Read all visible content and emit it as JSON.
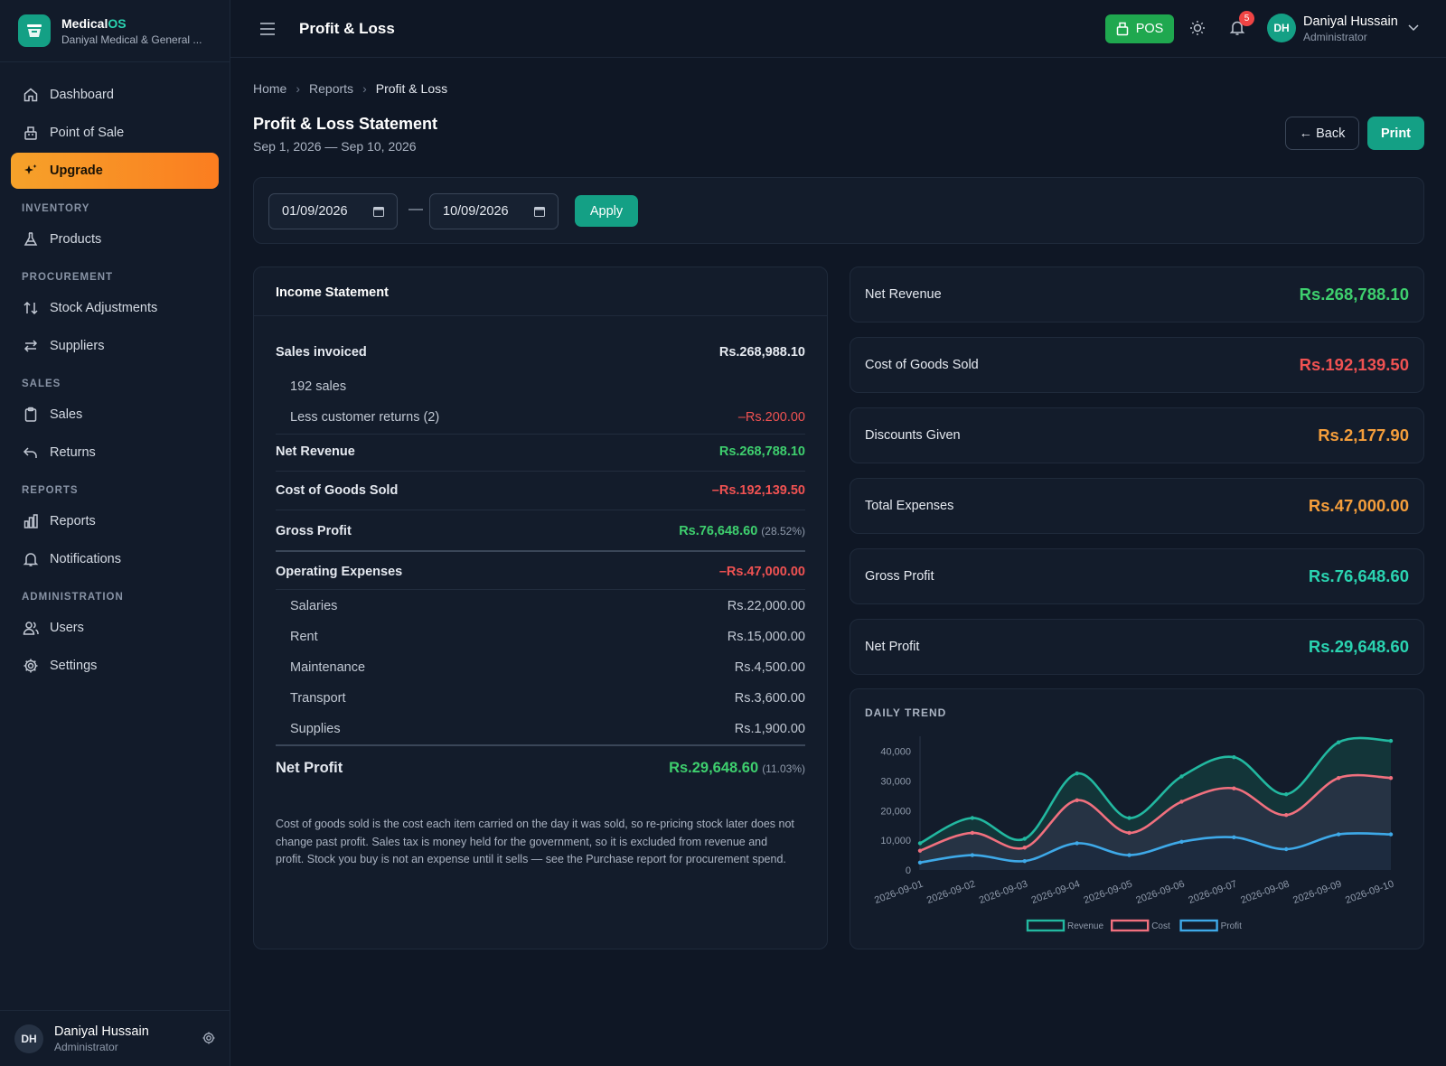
{
  "brand": {
    "name_main": "Medical",
    "name_accent": "OS",
    "subtitle": "Daniyal Medical & General ..."
  },
  "nav": {
    "dashboard": "Dashboard",
    "pos": "Point of Sale",
    "upgrade": "Upgrade",
    "sec_inventory": "INVENTORY",
    "products": "Products",
    "sec_procurement": "PROCUREMENT",
    "stock_adjustments": "Stock Adjustments",
    "suppliers": "Suppliers",
    "sec_sales": "SALES",
    "sales": "Sales",
    "returns": "Returns",
    "sec_reports": "REPORTS",
    "reports": "Reports",
    "notifications": "Notifications",
    "sec_administration": "ADMINISTRATION",
    "users": "Users",
    "settings": "Settings"
  },
  "user": {
    "initials": "DH",
    "name": "Daniyal Hussain",
    "role": "Administrator"
  },
  "topbar": {
    "title": "Profit & Loss",
    "pos_label": "POS",
    "notification_count": "5"
  },
  "breadcrumb": {
    "home": "Home",
    "reports": "Reports",
    "current": "Profit & Loss"
  },
  "header": {
    "title": "Profit & Loss Statement",
    "period": "Sep 1, 2026 — Sep 10, 2026",
    "back_label": "← Back",
    "print_label": "Print"
  },
  "filter": {
    "from": "01/09/2026",
    "separator": "—",
    "to": "10/09/2026",
    "apply_label": "Apply"
  },
  "income": {
    "heading": "Income Statement",
    "sales_invoiced_label": "Sales invoiced",
    "sales_invoiced_value": "Rs.268,988.10",
    "sales_count": "192 sales",
    "returns_label": "Less customer returns (2)",
    "returns_value": "–Rs.200.00",
    "net_revenue_label": "Net Revenue",
    "net_revenue_value": "Rs.268,788.10",
    "cogs_label": "Cost of Goods Sold",
    "cogs_value": "–Rs.192,139.50",
    "gross_profit_label": "Gross Profit",
    "gross_profit_value": "Rs.76,648.60",
    "gross_profit_pct": "(28.52%)",
    "opex_label": "Operating Expenses",
    "opex_value": "–Rs.47,000.00",
    "expenses": [
      {
        "label": "Salaries",
        "value": "Rs.22,000.00"
      },
      {
        "label": "Rent",
        "value": "Rs.15,000.00"
      },
      {
        "label": "Maintenance",
        "value": "Rs.4,500.00"
      },
      {
        "label": "Transport",
        "value": "Rs.3,600.00"
      },
      {
        "label": "Supplies",
        "value": "Rs.1,900.00"
      }
    ],
    "net_profit_label": "Net Profit",
    "net_profit_value": "Rs.29,648.60",
    "net_profit_pct": "(11.03%)",
    "note": "Cost of goods sold is the cost each item carried on the day it was sold, so re-pricing stock later does not change past profit. Sales tax is money held for the government, so it is excluded from revenue and profit. Stock you buy is not an expense until it sells — see the Purchase report for procurement spend."
  },
  "stats": [
    {
      "label": "Net Revenue",
      "value": "Rs.268,788.10",
      "color": "#3ecf6e"
    },
    {
      "label": "Cost of Goods Sold",
      "value": "Rs.192,139.50",
      "color": "#f05252"
    },
    {
      "label": "Discounts Given",
      "value": "Rs.2,177.90",
      "color": "#f59e3b"
    },
    {
      "label": "Total Expenses",
      "value": "Rs.47,000.00",
      "color": "#f59e3b"
    },
    {
      "label": "Gross Profit",
      "value": "Rs.76,648.60",
      "color": "#2ad4b1"
    },
    {
      "label": "Net Profit",
      "value": "Rs.29,648.60",
      "color": "#2ad4b1"
    }
  ],
  "trend_title": "DAILY TREND",
  "chart_data": {
    "type": "area",
    "x": [
      "2026-09-01",
      "2026-09-02",
      "2026-09-03",
      "2026-09-04",
      "2026-09-05",
      "2026-09-06",
      "2026-09-07",
      "2026-09-08",
      "2026-09-09",
      "2026-09-10"
    ],
    "ylim": [
      0,
      42000
    ],
    "yticks": [
      0,
      10000,
      20000,
      30000,
      40000
    ],
    "ytick_labels": [
      "0",
      "10,000",
      "20,000",
      "30,000",
      "40,000"
    ],
    "series": [
      {
        "name": "Revenue",
        "color": "#22b8a0",
        "values": [
          9000,
          17500,
          10500,
          32500,
          17500,
          31500,
          38000,
          25500,
          43000,
          43500
        ]
      },
      {
        "name": "Cost",
        "color": "#f0707e",
        "values": [
          6500,
          12500,
          7500,
          23500,
          12500,
          23000,
          27500,
          18500,
          31000,
          31000
        ]
      },
      {
        "name": "Profit",
        "color": "#3ea9e8",
        "values": [
          2500,
          5000,
          3000,
          9000,
          5000,
          9500,
          11000,
          7000,
          12000,
          12000
        ]
      }
    ],
    "legend_position": "bottom",
    "grid": false
  }
}
